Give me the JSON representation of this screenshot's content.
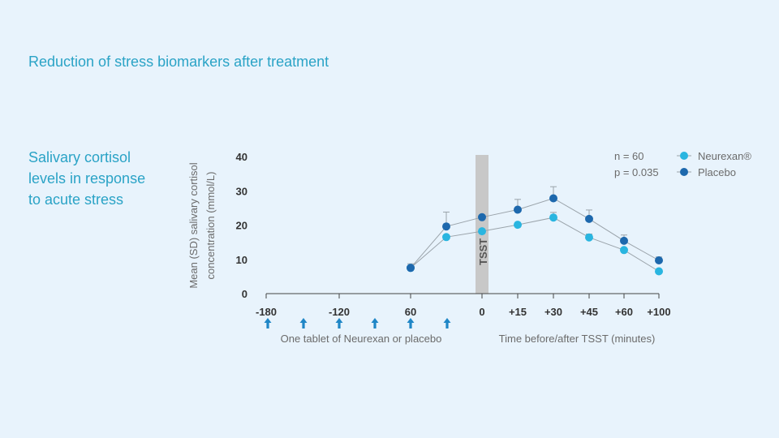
{
  "slide": {
    "title": "Reduction of stress biomarkers after treatment",
    "side_label_lines": [
      "Salivary cortisol",
      "levels in response",
      "to acute stress"
    ]
  },
  "colors": {
    "neurexan": "#29b5e0",
    "placebo": "#1d68ad",
    "line": "#9aa3aa",
    "tsst_band": "#c8c8c8",
    "arrow": "#1f86c6",
    "text": "#333333",
    "muted": "#6b6b6b"
  },
  "chart_data": {
    "type": "line",
    "ylabel_lines": [
      "Mean (SD) salivary cortisol",
      "concentration (mmol/L)"
    ],
    "xlabel_left": "One tablet of Neurexan or placebo",
    "xlabel_right": "Time before/after TSST (minutes)",
    "ylim": [
      0,
      40
    ],
    "yticks": [
      0,
      10,
      20,
      30,
      40
    ],
    "xtick_labels": [
      "-180",
      "-120",
      "60",
      "0",
      "+15",
      "+30",
      "+45",
      "+60",
      "+100"
    ],
    "dose_arrow_count": 6,
    "band_label": "TSST",
    "stats": [
      "n = 60",
      "p = 0.035"
    ],
    "timepoints": [
      "60",
      "-30",
      "0",
      "+15",
      "+30",
      "+45",
      "+60",
      "+100"
    ],
    "series": [
      {
        "name": "Neurexan®",
        "values": [
          7.5,
          16.5,
          18.2,
          20.1,
          22.2,
          16.4,
          12.7,
          6.5
        ],
        "error": [
          0,
          0,
          0,
          0,
          1.5,
          1.0,
          0,
          0
        ]
      },
      {
        "name": "Placebo",
        "values": [
          7.5,
          19.6,
          22.3,
          24.5,
          27.8,
          21.8,
          15.4,
          9.7
        ],
        "error": [
          1.2,
          4.2,
          0,
          3.0,
          3.4,
          2.6,
          1.7,
          1.0
        ]
      }
    ],
    "grid": false,
    "legend": "top-right"
  }
}
